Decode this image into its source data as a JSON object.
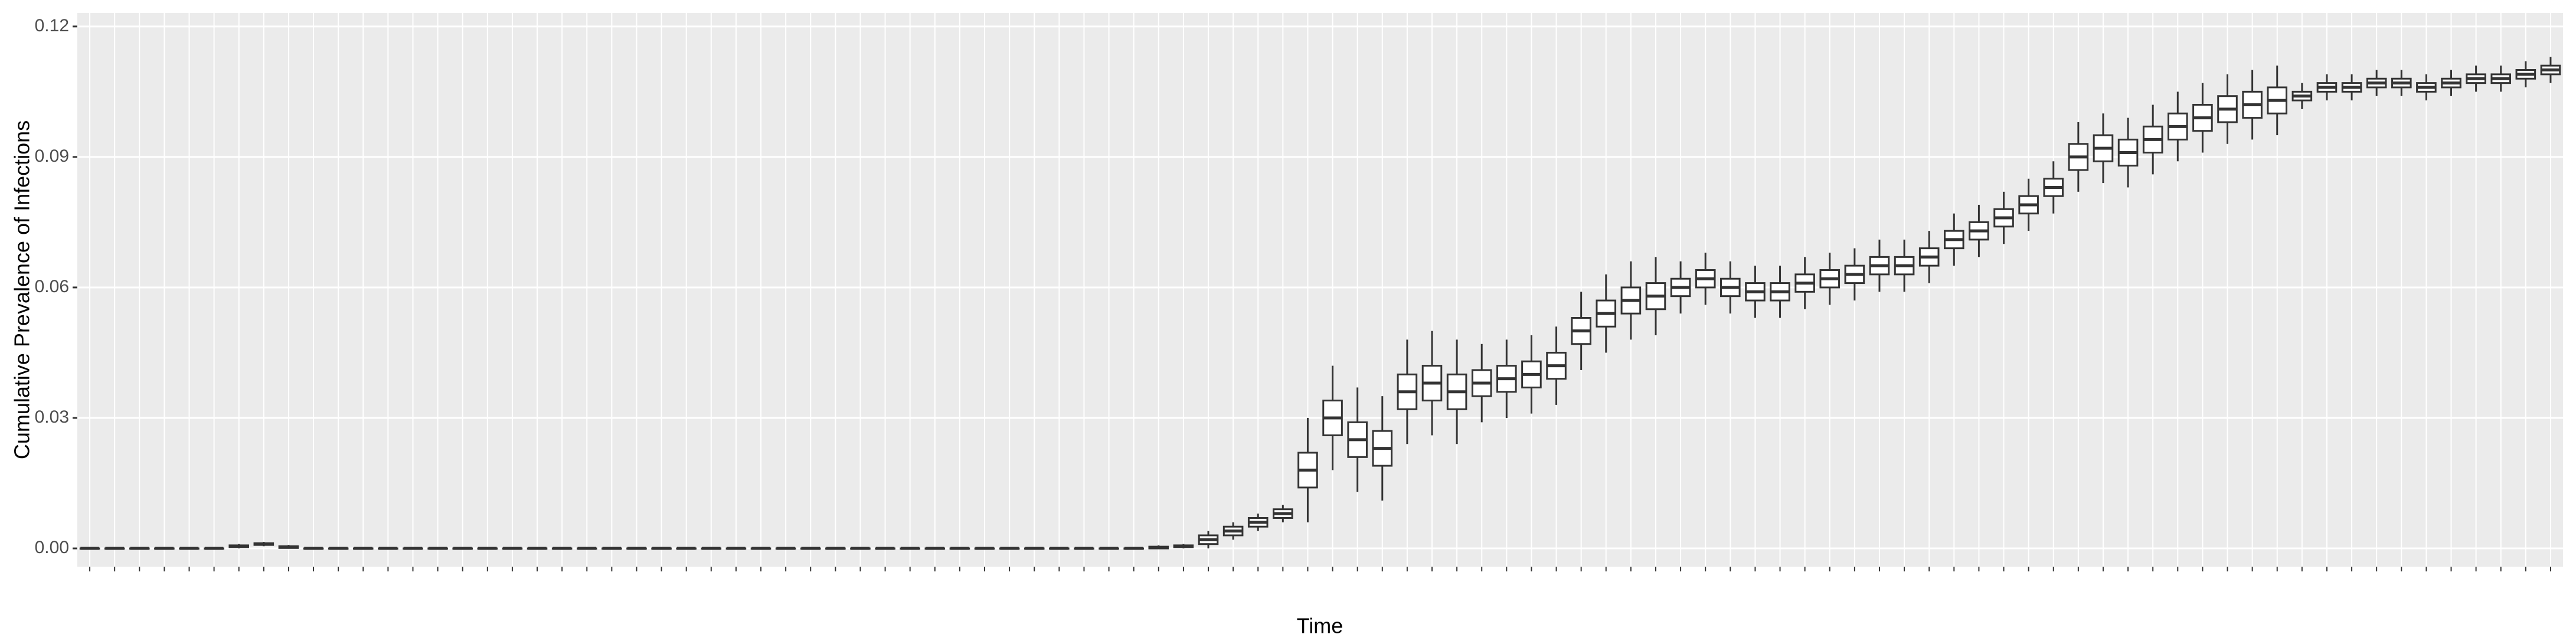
{
  "chart_data": {
    "type": "boxplot",
    "x_label": "Time",
    "y_label": "Cumulative Prevalence of Infections",
    "categories": [
      null,
      null,
      null,
      null,
      null,
      null,
      null,
      null,
      null,
      null,
      null,
      null,
      null,
      null,
      null,
      null,
      null,
      null,
      null,
      null,
      null,
      null,
      null,
      null,
      null,
      null,
      null,
      null,
      null,
      null,
      null,
      null,
      null,
      null,
      null,
      null,
      null,
      null,
      null,
      null,
      null,
      null,
      null,
      null,
      null,
      null,
      null,
      null,
      null,
      null,
      null,
      null,
      null,
      null,
      null,
      null,
      null,
      null,
      null,
      null,
      null,
      null,
      null,
      null,
      null,
      null,
      null,
      null,
      null,
      null,
      null,
      null,
      null,
      null,
      null,
      null,
      null,
      null,
      null,
      null,
      null,
      null,
      null,
      null,
      null,
      null,
      null,
      null,
      null,
      null,
      null,
      null,
      null,
      null,
      null,
      null,
      null,
      null,
      null,
      null
    ],
    "whislo": [
      0,
      0,
      0,
      0,
      0,
      0,
      0,
      0.0005,
      0,
      0,
      0,
      0,
      0,
      0,
      0,
      0,
      0,
      0,
      0,
      0,
      0,
      0,
      0,
      0,
      0,
      0,
      0,
      0,
      0,
      0,
      0,
      0,
      0,
      0,
      0,
      0,
      0,
      0,
      0,
      0,
      0,
      0,
      0,
      0,
      0,
      0,
      0.002,
      0.004,
      0.006,
      0.006,
      0.018,
      0.013,
      0.011,
      0.024,
      0.026,
      0.024,
      0.029,
      0.03,
      0.031,
      0.033,
      0.041,
      0.045,
      0.048,
      0.049,
      0.054,
      0.056,
      0.054,
      0.053,
      0.053,
      0.055,
      0.056,
      0.057,
      0.059,
      0.059,
      0.061,
      0.065,
      0.067,
      0.07,
      0.073,
      0.077,
      0.082,
      0.084,
      0.083,
      0.086,
      0.089,
      0.091,
      0.093,
      0.094,
      0.095,
      0.101,
      0.103,
      0.103,
      0.104,
      0.104,
      0.103,
      0.104,
      0.105,
      0.105,
      0.106,
      0.107
    ],
    "q1": [
      0,
      0,
      0,
      0,
      0,
      0,
      0.0003,
      0.0008,
      0.0001,
      0,
      0,
      0,
      0,
      0,
      0,
      0,
      0,
      0,
      0,
      0,
      0,
      0,
      0,
      0,
      0,
      0,
      0,
      0,
      0,
      0,
      0,
      0,
      0,
      0,
      0,
      0,
      0,
      0,
      0,
      0,
      0,
      0,
      0,
      0,
      0.0003,
      0.001,
      0.003,
      0.005,
      0.007,
      0.014,
      0.026,
      0.021,
      0.019,
      0.032,
      0.034,
      0.032,
      0.035,
      0.036,
      0.037,
      0.039,
      0.047,
      0.051,
      0.054,
      0.055,
      0.058,
      0.06,
      0.058,
      0.057,
      0.057,
      0.059,
      0.06,
      0.061,
      0.063,
      0.063,
      0.065,
      0.069,
      0.071,
      0.074,
      0.077,
      0.081,
      0.087,
      0.089,
      0.088,
      0.091,
      0.094,
      0.096,
      0.098,
      0.099,
      0.1,
      0.103,
      0.105,
      0.105,
      0.106,
      0.106,
      0.105,
      0.106,
      0.107,
      0.107,
      0.108,
      0.109
    ],
    "median": [
      0,
      0,
      0,
      0,
      0,
      0,
      0.0005,
      0.001,
      0.0003,
      0,
      0,
      0,
      0,
      0,
      0,
      0,
      0,
      0,
      0,
      0,
      0,
      0,
      0,
      0,
      0,
      0,
      0,
      0,
      0,
      0,
      0,
      0,
      0,
      0,
      0,
      0,
      0,
      0,
      0,
      0,
      0,
      0,
      0,
      0.0002,
      0.0005,
      0.002,
      0.004,
      0.006,
      0.008,
      0.018,
      0.03,
      0.025,
      0.023,
      0.036,
      0.038,
      0.036,
      0.038,
      0.039,
      0.04,
      0.042,
      0.05,
      0.054,
      0.057,
      0.058,
      0.06,
      0.062,
      0.06,
      0.059,
      0.059,
      0.061,
      0.062,
      0.063,
      0.065,
      0.065,
      0.067,
      0.071,
      0.073,
      0.076,
      0.079,
      0.083,
      0.09,
      0.092,
      0.091,
      0.094,
      0.097,
      0.099,
      0.101,
      0.102,
      0.103,
      0.104,
      0.106,
      0.106,
      0.107,
      0.107,
      0.106,
      0.107,
      0.108,
      0.108,
      0.109,
      0.11
    ],
    "q3": [
      0,
      0,
      0,
      0,
      0,
      0,
      0.0007,
      0.0012,
      0.0005,
      0,
      0,
      0,
      0,
      0,
      0,
      0,
      0,
      0,
      0,
      0,
      0,
      0,
      0,
      0,
      0,
      0,
      0,
      0,
      0,
      0,
      0,
      0,
      0,
      0,
      0,
      0,
      0,
      0,
      0,
      0,
      0,
      0,
      0,
      0.0004,
      0.0007,
      0.003,
      0.005,
      0.007,
      0.009,
      0.022,
      0.034,
      0.029,
      0.027,
      0.04,
      0.042,
      0.04,
      0.041,
      0.042,
      0.043,
      0.045,
      0.053,
      0.057,
      0.06,
      0.061,
      0.062,
      0.064,
      0.062,
      0.061,
      0.061,
      0.063,
      0.064,
      0.065,
      0.067,
      0.067,
      0.069,
      0.073,
      0.075,
      0.078,
      0.081,
      0.085,
      0.093,
      0.095,
      0.094,
      0.097,
      0.1,
      0.102,
      0.104,
      0.105,
      0.106,
      0.105,
      0.107,
      0.107,
      0.108,
      0.108,
      0.107,
      0.108,
      0.109,
      0.109,
      0.11,
      0.111
    ],
    "whishi": [
      0,
      0,
      0,
      0,
      0,
      0,
      0.001,
      0.0015,
      0.0008,
      0,
      0,
      0,
      0,
      0,
      0,
      0,
      0,
      0,
      0,
      0,
      0,
      0,
      0,
      0,
      0,
      0,
      0,
      0,
      0,
      0,
      0,
      0,
      0,
      0,
      0,
      0,
      0,
      0,
      0,
      0,
      0,
      0,
      0,
      0.0007,
      0.001,
      0.004,
      0.006,
      0.008,
      0.01,
      0.03,
      0.042,
      0.037,
      0.035,
      0.048,
      0.05,
      0.048,
      0.047,
      0.048,
      0.049,
      0.051,
      0.059,
      0.063,
      0.066,
      0.067,
      0.066,
      0.068,
      0.066,
      0.065,
      0.065,
      0.067,
      0.068,
      0.069,
      0.071,
      0.071,
      0.073,
      0.077,
      0.079,
      0.082,
      0.085,
      0.089,
      0.098,
      0.1,
      0.099,
      0.102,
      0.105,
      0.107,
      0.109,
      0.11,
      0.111,
      0.107,
      0.109,
      0.109,
      0.11,
      0.11,
      0.109,
      0.11,
      0.111,
      0.111,
      0.112,
      0.113
    ],
    "ylim": [
      -0.0042,
      0.1231
    ],
    "yticks": [
      {
        "value": 0,
        "label": "0.00"
      },
      {
        "value": 0.03,
        "label": "0.03"
      },
      {
        "value": 0.06,
        "label": "0.06"
      },
      {
        "value": 0.09,
        "label": "0.09"
      },
      {
        "value": 0.12,
        "label": "0.12"
      }
    ],
    "grid": true,
    "background": "#ebebeb",
    "box_fill": "#ffffff",
    "box_stroke": "#333333"
  }
}
